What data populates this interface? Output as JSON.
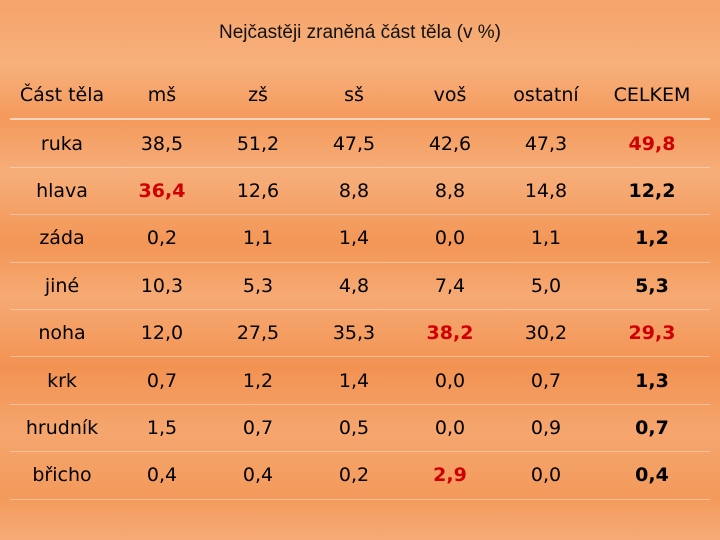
{
  "chart_data": {
    "type": "table",
    "title": "Nejčastěji zraněná část těla (v %)",
    "columns": [
      "Část těla",
      "mš",
      "zš",
      "sš",
      "voš",
      "ostatní",
      "CELKEM"
    ],
    "rows": [
      {
        "label": "ruka",
        "values": [
          "38,5",
          "51,2",
          "47,5",
          "42,6",
          "47,3",
          "49,8"
        ],
        "highlight": [
          5
        ]
      },
      {
        "label": "hlava",
        "values": [
          "36,4",
          "12,6",
          "8,8",
          "8,8",
          "14,8",
          "12,2"
        ],
        "highlight": [
          0
        ]
      },
      {
        "label": "záda",
        "values": [
          "0,2",
          "1,1",
          "1,4",
          "0,0",
          "1,1",
          "1,2"
        ],
        "highlight": []
      },
      {
        "label": "jiné",
        "values": [
          "10,3",
          "5,3",
          "4,8",
          "7,4",
          "5,0",
          "5,3"
        ],
        "highlight": []
      },
      {
        "label": "noha",
        "values": [
          "12,0",
          "27,5",
          "35,3",
          "38,2",
          "30,2",
          "29,3"
        ],
        "highlight": [
          3,
          5
        ]
      },
      {
        "label": "krk",
        "values": [
          "0,7",
          "1,2",
          "1,4",
          "0,0",
          "0,7",
          "1,3"
        ],
        "highlight": []
      },
      {
        "label": "hrudník",
        "values": [
          "1,5",
          "0,7",
          "0,5",
          "0,0",
          "0,9",
          "0,7"
        ],
        "highlight": []
      },
      {
        "label": "břicho",
        "values": [
          "0,4",
          "0,4",
          "0,2",
          "2,9",
          "0,0",
          "0,4"
        ],
        "highlight": [
          3
        ]
      }
    ],
    "colors": {
      "highlight": "#d10000",
      "background": "#f5a46a"
    }
  }
}
